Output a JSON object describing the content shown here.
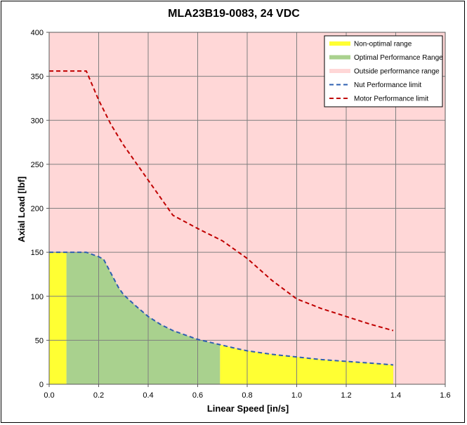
{
  "chart_data": {
    "type": "area",
    "title": "MLA23B19-0083, 24 VDC",
    "xlabel": "Linear Speed [in/s]",
    "ylabel": "Axial Load [lbf]",
    "xlim": [
      0,
      1.6
    ],
    "ylim": [
      0,
      400
    ],
    "x_ticks": [
      "0.0",
      "0.2",
      "0.4",
      "0.6",
      "0.8",
      "1.0",
      "1.2",
      "1.4",
      "1.6"
    ],
    "y_ticks": [
      "0",
      "50",
      "100",
      "150",
      "200",
      "250",
      "300",
      "350",
      "400"
    ],
    "grid": true,
    "legend_position": "top-right",
    "colors": {
      "non_optimal": "#ffff33",
      "optimal": "#a9d18e",
      "outside": "#ffd7d7",
      "nut_limit": "#2e5fb0",
      "motor_limit": "#c00000",
      "grid": "#7f7f7f"
    },
    "series": [
      {
        "name": "Non-optimal range",
        "kind": "area",
        "segments": [
          {
            "x": [
              0.0,
              0.07
            ],
            "y": [
              150,
              150
            ]
          },
          {
            "x": [
              0.69,
              0.75,
              0.8,
              0.9,
              1.0,
              1.1,
              1.2,
              1.3,
              1.39
            ],
            "y": [
              45,
              41,
              38,
              34,
              31,
              28,
              26,
              24,
              22
            ]
          }
        ]
      },
      {
        "name": "Optimal Performance Range",
        "kind": "area",
        "x": [
          0.07,
          0.1,
          0.15,
          0.2,
          0.22,
          0.25,
          0.28,
          0.3,
          0.35,
          0.4,
          0.45,
          0.5,
          0.6,
          0.69
        ],
        "y": [
          150,
          150,
          150,
          145,
          142,
          126,
          110,
          102,
          89,
          77,
          68,
          61,
          51,
          45
        ]
      },
      {
        "name": "Outside performance range",
        "kind": "background"
      },
      {
        "name": "Nut Performance limit",
        "kind": "line",
        "style": "dashed",
        "x": [
          0.0,
          0.07,
          0.1,
          0.15,
          0.2,
          0.22,
          0.25,
          0.28,
          0.3,
          0.35,
          0.4,
          0.45,
          0.5,
          0.6,
          0.69,
          0.75,
          0.8,
          0.9,
          1.0,
          1.1,
          1.2,
          1.3,
          1.39
        ],
        "y": [
          150,
          150,
          150,
          150,
          145,
          142,
          126,
          110,
          102,
          89,
          77,
          68,
          61,
          51,
          45,
          41,
          38,
          34,
          31,
          28,
          26,
          24,
          22
        ]
      },
      {
        "name": "Motor Performance limit",
        "kind": "line",
        "style": "dashed",
        "x": [
          0.0,
          0.15,
          0.2,
          0.25,
          0.3,
          0.4,
          0.5,
          0.6,
          0.7,
          0.8,
          0.9,
          1.0,
          1.1,
          1.2,
          1.3,
          1.39
        ],
        "y": [
          356,
          356,
          323,
          295,
          272,
          232,
          192,
          177,
          163,
          143,
          118,
          97,
          86,
          77,
          68,
          61
        ]
      }
    ]
  }
}
